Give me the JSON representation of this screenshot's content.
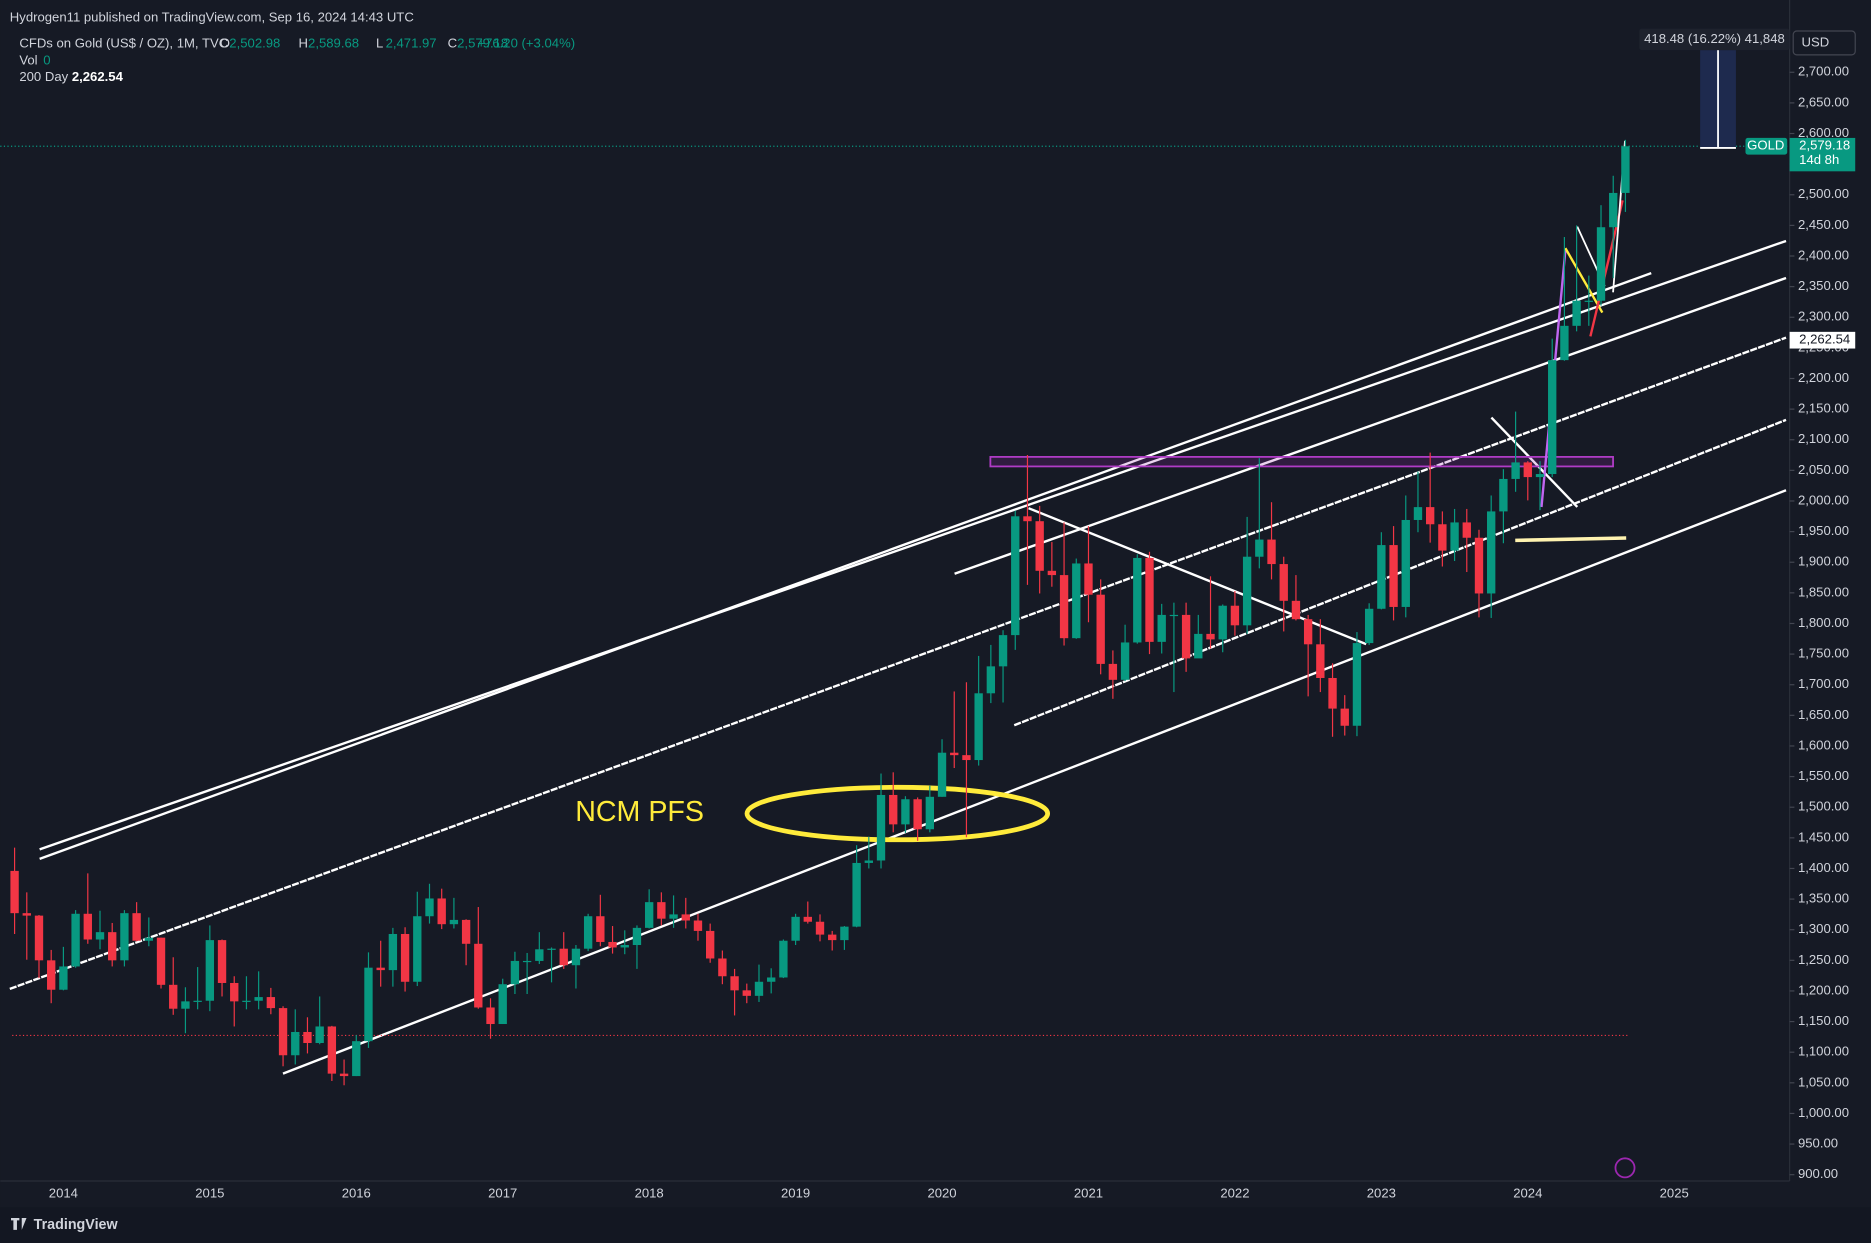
{
  "chart_data": {
    "type": "candlestick",
    "publisher": "Hydrogen11 published on TradingView.com, Sep 16, 2024 14:43 UTC",
    "title": "CFDs on Gold (US$ / OZ), 1M, TVC",
    "ohlc_legend": [
      {
        "key": "O",
        "value": "2,502.98"
      },
      {
        "key": "H",
        "value": "2,589.68"
      },
      {
        "key": "L",
        "value": "2,471.97"
      },
      {
        "key": "C",
        "value": "2,579.18"
      }
    ],
    "change": "+76.20 (+3.04%)",
    "volume": {
      "name": "Vol",
      "value": 0
    },
    "indicator": {
      "name": "200 Day",
      "value": 2262.54,
      "label": "2,262.54"
    },
    "last_price": {
      "symbol": "GOLD",
      "label": "2,579.18",
      "countdown": "14d 8h"
    },
    "currency": "USD",
    "measure": "418.48 (16.22%) 41,848",
    "annotation": "NCM PFS",
    "footer": "TradingView",
    "up_color": "#089981",
    "down_color": "#f23645",
    "categories": [
      null,
      null,
      null,
      null,
      "2014",
      null,
      null,
      null,
      null,
      null,
      null,
      null,
      null,
      null,
      null,
      null,
      "2015",
      null,
      null,
      null,
      null,
      null,
      null,
      null,
      null,
      null,
      null,
      null,
      "2016",
      null,
      null,
      null,
      null,
      null,
      null,
      null,
      null,
      null,
      null,
      null,
      "2017",
      null,
      null,
      null,
      null,
      null,
      null,
      null,
      null,
      null,
      null,
      null,
      "2018",
      null,
      null,
      null,
      null,
      null,
      null,
      null,
      null,
      null,
      null,
      null,
      "2019",
      null,
      null,
      null,
      null,
      null,
      null,
      null,
      null,
      null,
      null,
      null,
      "2020",
      null,
      null,
      null,
      null,
      null,
      null,
      null,
      null,
      null,
      null,
      null,
      "2021",
      null,
      null,
      null,
      null,
      null,
      null,
      null,
      null,
      null,
      null,
      null,
      "2022",
      null,
      null,
      null,
      null,
      null,
      null,
      null,
      null,
      null,
      null,
      null,
      "2023",
      null,
      null,
      null,
      null,
      null,
      null,
      null,
      null,
      null,
      null,
      null,
      "2024",
      null,
      null,
      null,
      null,
      null,
      null,
      null,
      null,
      null,
      null,
      null,
      "2025"
    ],
    "open": [
      1396,
      1327,
      1323,
      1250,
      1202,
      1240,
      1326,
      1284,
      1296,
      1250,
      1327,
      1282,
      1287,
      1210,
      1171,
      1183,
      1184,
      1283,
      1213,
      1183,
      1184,
      1190,
      1172,
      1095,
      1133,
      1115,
      1142,
      1065,
      1061,
      1118,
      1238,
      1234,
      1293,
      1215,
      1322,
      1351,
      1309,
      1316,
      1277,
      1173,
      1146,
      1211,
      1249,
      1249,
      1268,
      1269,
      1242,
      1269,
      1322,
      1280,
      1271,
      1275,
      1303,
      1345,
      1318,
      1325,
      1315,
      1298,
      1253,
      1224,
      1201,
      1192,
      1215,
      1222,
      1282,
      1321,
      1313,
      1292,
      1283,
      1305,
      1409,
      1413,
      1520,
      1472,
      1513,
      1464,
      1517,
      1589,
      1585,
      1577,
      1686,
      1730,
      1781,
      1975,
      1967,
      1886,
      1879,
      1776,
      1898,
      1847,
      1734,
      1708,
      1769,
      1907,
      1770,
      1814,
      1814,
      1743,
      1783,
      1774,
      1829,
      1797,
      1909,
      1937,
      1897,
      1837,
      1807,
      1766,
      1711,
      1661,
      1633,
      1768,
      1824,
      1928,
      1827,
      1969,
      1990,
      1962,
      1919,
      1965,
      1940,
      1849,
      1983,
      2036,
      2063,
      2039,
      2044,
      2230,
      2286,
      2327,
      2327,
      2447,
      2502.98,
      null,
      null,
      null,
      null
    ],
    "high": [
      1434,
      1361,
      1324,
      1267,
      1272,
      1332,
      1392,
      1331,
      1311,
      1332,
      1345,
      1320,
      1287,
      1255,
      1206,
      1239,
      1307,
      1284,
      1224,
      1224,
      1232,
      1205,
      1175,
      1170,
      1157,
      1191,
      1143,
      1088,
      1128,
      1263,
      1282,
      1303,
      1304,
      1362,
      1375,
      1367,
      1352,
      1317,
      1337,
      1188,
      1220,
      1264,
      1262,
      1296,
      1271,
      1296,
      1275,
      1326,
      1357,
      1306,
      1299,
      1307,
      1366,
      1361,
      1356,
      1352,
      1326,
      1310,
      1266,
      1236,
      1212,
      1243,
      1237,
      1284,
      1326,
      1346,
      1325,
      1298,
      1306,
      1438,
      1452,
      1555,
      1557,
      1518,
      1516,
      1535,
      1611,
      1689,
      1704,
      1747,
      1765,
      1789,
      1984,
      2075,
      1992,
      1933,
      1965,
      1906,
      1959,
      1872,
      1756,
      1798,
      1913,
      1917,
      1832,
      1834,
      1834,
      1814,
      1877,
      1831,
      1853,
      1974,
      2070,
      1998,
      1909,
      1879,
      1814,
      1807,
      1735,
      1683,
      1786,
      1833,
      1949,
      1959,
      2009,
      2048,
      2079,
      1983,
      1987,
      1987,
      1953,
      2009,
      2052,
      2146,
      2065,
      2065,
      2265,
      2431,
      2450,
      2368,
      2483,
      2531,
      2589.68,
      null,
      null,
      null,
      null
    ],
    "low": [
      1293,
      1251,
      1221,
      1180,
      1201,
      1238,
      1277,
      1268,
      1240,
      1240,
      1281,
      1273,
      1204,
      1161,
      1131,
      1170,
      1167,
      1191,
      1142,
      1170,
      1170,
      1162,
      1077,
      1080,
      1098,
      1113,
      1053,
      1046,
      1061,
      1107,
      1207,
      1207,
      1199,
      1208,
      1310,
      1301,
      1302,
      1242,
      1171,
      1122,
      1146,
      1195,
      1195,
      1244,
      1214,
      1236,
      1204,
      1265,
      1273,
      1261,
      1260,
      1236,
      1302,
      1307,
      1303,
      1302,
      1282,
      1246,
      1211,
      1160,
      1180,
      1182,
      1196,
      1221,
      1275,
      1310,
      1281,
      1266,
      1267,
      1304,
      1400,
      1400,
      1459,
      1458,
      1445,
      1459,
      1517,
      1564,
      1451,
      1568,
      1670,
      1671,
      1757,
      1863,
      1849,
      1860,
      1764,
      1775,
      1802,
      1717,
      1677,
      1706,
      1767,
      1750,
      1751,
      1688,
      1721,
      1746,
      1759,
      1753,
      1780,
      1783,
      1890,
      1872,
      1787,
      1805,
      1681,
      1688,
      1615,
      1617,
      1616,
      1765,
      1823,
      1805,
      1810,
      1949,
      1932,
      1893,
      1902,
      1884,
      1810,
      1809,
      1931,
      2015,
      2001,
      1985,
      2039,
      2229,
      2277,
      2286,
      2319,
      2364,
      2471.97,
      null,
      null,
      null,
      null
    ],
    "close": [
      1327,
      1323,
      1250,
      1202,
      1240,
      1326,
      1284,
      1296,
      1250,
      1327,
      1282,
      1287,
      1210,
      1171,
      1183,
      1184,
      1283,
      1213,
      1183,
      1184,
      1190,
      1172,
      1095,
      1133,
      1115,
      1142,
      1065,
      1061,
      1118,
      1238,
      1234,
      1293,
      1215,
      1322,
      1351,
      1309,
      1316,
      1277,
      1173,
      1146,
      1211,
      1249,
      1249,
      1268,
      1269,
      1242,
      1269,
      1322,
      1280,
      1271,
      1275,
      1303,
      1345,
      1318,
      1325,
      1315,
      1298,
      1253,
      1224,
      1201,
      1192,
      1215,
      1222,
      1282,
      1321,
      1313,
      1292,
      1283,
      1305,
      1409,
      1413,
      1520,
      1472,
      1513,
      1464,
      1517,
      1589,
      1585,
      1577,
      1686,
      1730,
      1781,
      1975,
      1967,
      1886,
      1879,
      1776,
      1898,
      1847,
      1734,
      1708,
      1769,
      1907,
      1770,
      1814,
      1814,
      1743,
      1783,
      1774,
      1829,
      1797,
      1909,
      1937,
      1897,
      1837,
      1807,
      1766,
      1711,
      1661,
      1633,
      1768,
      1824,
      1928,
      1827,
      1969,
      1990,
      1962,
      1919,
      1965,
      1940,
      1849,
      1983,
      2036,
      2063,
      2039,
      2044,
      2230,
      2286,
      2327,
      2327,
      2447,
      2502.98,
      2579.18,
      null,
      null,
      null,
      null
    ],
    "ylim": [
      880,
      2818
    ],
    "yticks": [
      {
        "value": 900,
        "label": "900.00"
      },
      {
        "value": 950,
        "label": "950.00"
      },
      {
        "value": 1000,
        "label": "1,000.00"
      },
      {
        "value": 1050,
        "label": "1,050.00"
      },
      {
        "value": 1100,
        "label": "1,100.00"
      },
      {
        "value": 1150,
        "label": "1,150.00"
      },
      {
        "value": 1200,
        "label": "1,200.00"
      },
      {
        "value": 1250,
        "label": "1,250.00"
      },
      {
        "value": 1300,
        "label": "1,300.00"
      },
      {
        "value": 1350,
        "label": "1,350.00"
      },
      {
        "value": 1400,
        "label": "1,400.00"
      },
      {
        "value": 1450,
        "label": "1,450.00"
      },
      {
        "value": 1500,
        "label": "1,500.00"
      },
      {
        "value": 1550,
        "label": "1,550.00"
      },
      {
        "value": 1600,
        "label": "1,600.00"
      },
      {
        "value": 1650,
        "label": "1,650.00"
      },
      {
        "value": 1700,
        "label": "1,700.00"
      },
      {
        "value": 1750,
        "label": "1,750.00"
      },
      {
        "value": 1800,
        "label": "1,800.00"
      },
      {
        "value": 1850,
        "label": "1,850.00"
      },
      {
        "value": 1900,
        "label": "1,900.00"
      },
      {
        "value": 1950,
        "label": "1,950.00"
      },
      {
        "value": 2000,
        "label": "2,000.00"
      },
      {
        "value": 2050,
        "label": "2,050.00"
      },
      {
        "value": 2100,
        "label": "2,100.00"
      },
      {
        "value": 2150,
        "label": "2,150.00"
      },
      {
        "value": 2200,
        "label": "2,200.00"
      },
      {
        "value": 2250,
        "label": "2,250.00"
      },
      {
        "value": 2300,
        "label": "2,300.00"
      },
      {
        "value": 2350,
        "label": "2,350.00"
      },
      {
        "value": 2400,
        "label": "2,400.00"
      },
      {
        "value": 2450,
        "label": "2,450.00"
      },
      {
        "value": 2500,
        "label": "2,500.00"
      },
      {
        "value": 2550,
        "label": "2,550.00"
      },
      {
        "value": 2600,
        "label": "2,600.00"
      },
      {
        "value": 2650,
        "label": "2,650.00"
      },
      {
        "value": 2700,
        "label": "2,700.00"
      }
    ],
    "grid": false
  }
}
